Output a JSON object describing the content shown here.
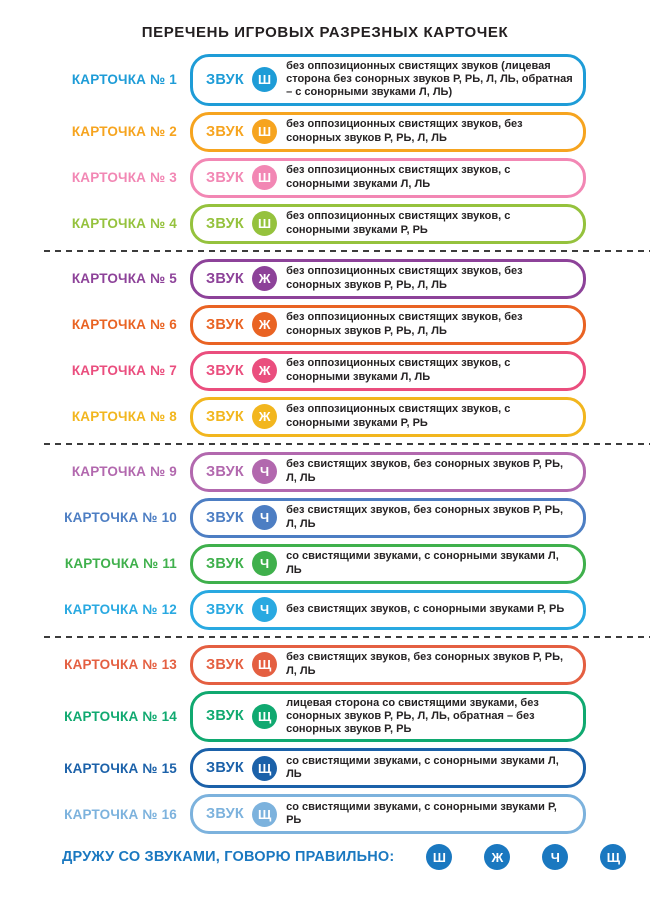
{
  "title": "ПЕРЕЧЕНЬ ИГРОВЫХ РАЗРЕЗНЫХ КАРТОЧЕК",
  "cards": [
    {
      "label": "КАРТОЧКА № 1",
      "sound_label": "ЗВУК",
      "sound": "Ш",
      "color": "#1e9cd7",
      "description": "без оппозиционных свистящих звуков (лицевая сторона без сонорных звуков Р, РЬ, Л, ЛЬ, обратная – с сонорными звуками Л, ЛЬ)"
    },
    {
      "label": "КАРТОЧКА № 2",
      "sound_label": "ЗВУК",
      "sound": "Ш",
      "color": "#f6a41f",
      "description": "без оппозиционных свистящих звуков, без сонорных звуков Р, РЬ, Л, ЛЬ"
    },
    {
      "label": "КАРТОЧКА № 3",
      "sound_label": "ЗВУК",
      "sound": "Ш",
      "color": "#f287b4",
      "description": "без оппозиционных свистящих звуков, с сонорными звуками Л, ЛЬ"
    },
    {
      "label": "КАРТОЧКА № 4",
      "sound_label": "ЗВУК",
      "sound": "Ш",
      "color": "#95c23d",
      "description": "без оппозиционных свистящих звуков, с сонорными звуками Р, РЬ"
    },
    {
      "label": "КАРТОЧКА № 5",
      "sound_label": "ЗВУК",
      "sound": "Ж",
      "color": "#8d4299",
      "description": "без оппозиционных свистящих звуков, без сонорных звуков Р, РЬ, Л, ЛЬ"
    },
    {
      "label": "КАРТОЧКА № 6",
      "sound_label": "ЗВУК",
      "sound": "Ж",
      "color": "#e96323",
      "description": "без оппозиционных свистящих звуков, без сонорных звуков Р, РЬ, Л, ЛЬ"
    },
    {
      "label": "КАРТОЧКА № 7",
      "sound_label": "ЗВУК",
      "sound": "Ж",
      "color": "#ea4e7e",
      "description": "без оппозиционных свистящих звуков, с сонорными звуками Л, ЛЬ"
    },
    {
      "label": "КАРТОЧКА № 8",
      "sound_label": "ЗВУК",
      "sound": "Ж",
      "color": "#f2b61e",
      "description": "без оппозиционных свистящих звуков, с сонорными звуками Р, РЬ"
    },
    {
      "label": "КАРТОЧКА № 9",
      "sound_label": "ЗВУК",
      "sound": "Ч",
      "color": "#b268ae",
      "description": "без свистящих звуков, без сонорных звуков Р, РЬ, Л, ЛЬ"
    },
    {
      "label": "КАРТОЧКА № 10",
      "sound_label": "ЗВУК",
      "sound": "Ч",
      "color": "#4d7ec3",
      "description": "без свистящих звуков, без сонорных звуков Р, РЬ, Л, ЛЬ"
    },
    {
      "label": "КАРТОЧКА № 11",
      "sound_label": "ЗВУК",
      "sound": "Ч",
      "color": "#3fb04c",
      "description": "со свистящими звуками, с сонорными звуками Л, ЛЬ"
    },
    {
      "label": "КАРТОЧКА № 12",
      "sound_label": "ЗВУК",
      "sound": "Ч",
      "color": "#29a9e1",
      "description": "без свистящих звуков, с сонорными звуками Р, РЬ"
    },
    {
      "label": "КАРТОЧКА № 13",
      "sound_label": "ЗВУК",
      "sound": "Щ",
      "color": "#e45f41",
      "description": "без свистящих звуков, без сонорных звуков Р, РЬ, Л, ЛЬ"
    },
    {
      "label": "КАРТОЧКА № 14",
      "sound_label": "ЗВУК",
      "sound": "Щ",
      "color": "#10a970",
      "description": "лицевая сторона со свистящими звуками, без сонорных звуков Р, РЬ, Л, ЛЬ, обратная – без сонорных звуков Р, РЬ"
    },
    {
      "label": "КАРТОЧКА № 15",
      "sound_label": "ЗВУК",
      "sound": "Щ",
      "color": "#1b61a9",
      "description": "со свистящими звуками, с сонорными звуками Л, ЛЬ"
    },
    {
      "label": "КАРТОЧКА № 16",
      "sound_label": "ЗВУК",
      "sound": "Щ",
      "color": "#7cb2dd",
      "description": "со свистящими звуками, с сонорными звуками Р, РЬ"
    }
  ],
  "footer": {
    "label": "ДРУЖУ СО ЗВУКАМИ, ГОВОРЮ ПРАВИЛЬНО:",
    "sounds": [
      "Ш",
      "Ж",
      "Ч",
      "Щ"
    ],
    "accent": "#1a78c0"
  }
}
